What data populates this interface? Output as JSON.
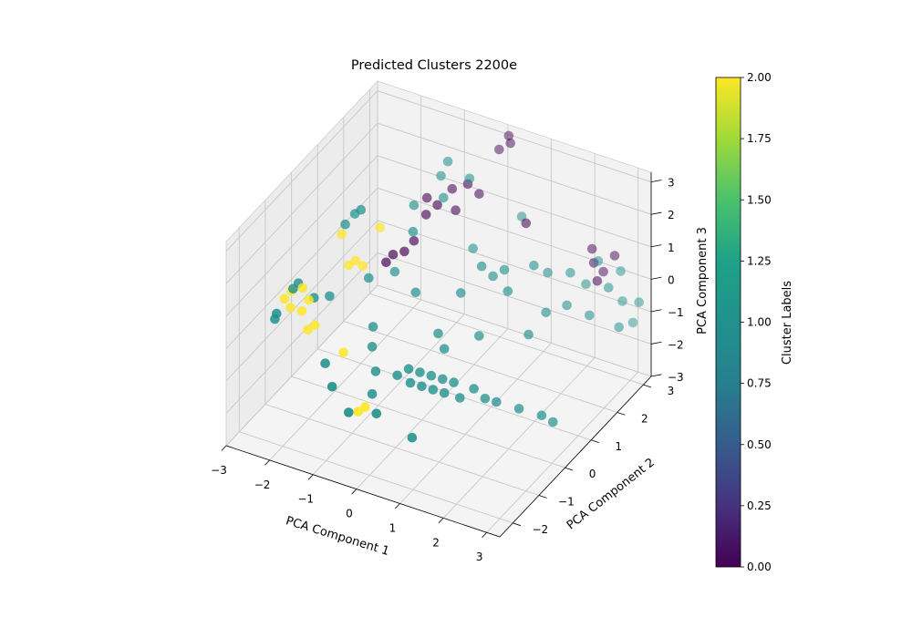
{
  "chart_data": {
    "type": "scatter",
    "title": "Predicted Clusters 2200e",
    "xlabel": "PCA Component 1",
    "ylabel": "PCA Component 2",
    "zlabel": "PCA Component 3",
    "x_ticks": [
      "−3",
      "−2",
      "−1",
      "0",
      "1",
      "2",
      "3"
    ],
    "y_ticks": [
      "−2",
      "−1",
      "0",
      "1",
      "2",
      "3"
    ],
    "z_ticks": [
      "−3",
      "−2",
      "−1",
      "0",
      "1",
      "2",
      "3"
    ],
    "xlim": [
      -3,
      3.3
    ],
    "ylim": [
      -2.5,
      3.3
    ],
    "zlim": [
      -3,
      3.3
    ],
    "grid": true,
    "colorbar": {
      "label": "Cluster Labels",
      "range": [
        0,
        2
      ],
      "colormap": "viridis",
      "ticks": [
        "0.00",
        "0.25",
        "0.50",
        "0.75",
        "1.00",
        "1.25",
        "1.50",
        "1.75",
        "2.00"
      ]
    },
    "colors": {
      "0": "#440154",
      "1": "#21918c",
      "2": "#fde725"
    },
    "points": [
      {
        "x": -2.8,
        "y": -0.6,
        "z": 0.0,
        "label": 2
      },
      {
        "x": -2.7,
        "y": -0.5,
        "z": 0.2,
        "label": 2
      },
      {
        "x": -2.6,
        "y": -0.7,
        "z": -0.1,
        "label": 2
      },
      {
        "x": -2.5,
        "y": -0.4,
        "z": 0.3,
        "label": 2
      },
      {
        "x": -2.4,
        "y": -0.6,
        "z": -0.2,
        "label": 2
      },
      {
        "x": -2.3,
        "y": -0.5,
        "z": 0.1,
        "label": 2
      },
      {
        "x": -2.2,
        "y": -0.7,
        "z": -0.6,
        "label": 2
      },
      {
        "x": -2.1,
        "y": -0.6,
        "z": -0.5,
        "label": 2
      },
      {
        "x": -1.8,
        "y": 0.2,
        "z": 0.8,
        "label": 2
      },
      {
        "x": -1.7,
        "y": 0.3,
        "z": 0.9,
        "label": 2
      },
      {
        "x": -1.6,
        "y": 0.4,
        "z": 0.7,
        "label": 2
      },
      {
        "x": -1.9,
        "y": 0.1,
        "z": 1.8,
        "label": 2
      },
      {
        "x": -1.2,
        "y": -1.0,
        "z": -0.6,
        "label": 2
      },
      {
        "x": -0.5,
        "y": -1.6,
        "z": -1.6,
        "label": 2
      },
      {
        "x": -0.4,
        "y": -1.5,
        "z": -1.5,
        "label": 2
      },
      {
        "x": -1.5,
        "y": 0.9,
        "z": 1.5,
        "label": 2
      },
      {
        "x": -2.9,
        "y": -0.8,
        "z": -0.5,
        "label": 1
      },
      {
        "x": -2.6,
        "y": -0.4,
        "z": 0.4,
        "label": 1
      },
      {
        "x": -2.3,
        "y": -0.3,
        "z": 0.0,
        "label": 1
      },
      {
        "x": -2.0,
        "y": -0.2,
        "z": 0.1,
        "label": 1
      },
      {
        "x": -2.8,
        "y": -0.9,
        "z": -0.2,
        "label": 1
      },
      {
        "x": -2.0,
        "y": 0.4,
        "z": 1.8,
        "label": 1
      },
      {
        "x": -1.9,
        "y": 0.6,
        "z": 2.0,
        "label": 1
      },
      {
        "x": -1.7,
        "y": 0.5,
        "z": 2.3,
        "label": 1
      },
      {
        "x": -1.4,
        "y": 0.3,
        "z": 0.5,
        "label": 1
      },
      {
        "x": -1.0,
        "y": -0.2,
        "z": -0.4,
        "label": 1
      },
      {
        "x": -0.9,
        "y": -0.4,
        "z": -0.8,
        "label": 1
      },
      {
        "x": -0.7,
        "y": -0.6,
        "z": -1.3,
        "label": 1
      },
      {
        "x": -0.6,
        "y": -0.9,
        "z": -1.7,
        "label": 1
      },
      {
        "x": -0.2,
        "y": -0.6,
        "z": -1.2,
        "label": 1
      },
      {
        "x": 0.0,
        "y": -0.5,
        "z": -1.0,
        "label": 1
      },
      {
        "x": 0.1,
        "y": -0.6,
        "z": -1.3,
        "label": 1
      },
      {
        "x": 0.2,
        "y": -0.4,
        "z": -1.1,
        "label": 1
      },
      {
        "x": 0.3,
        "y": -0.5,
        "z": -1.4,
        "label": 1
      },
      {
        "x": 0.4,
        "y": -0.3,
        "z": -1.2,
        "label": 1
      },
      {
        "x": 0.5,
        "y": -0.4,
        "z": -1.5,
        "label": 1
      },
      {
        "x": 0.6,
        "y": -0.2,
        "z": -1.3,
        "label": 1
      },
      {
        "x": 0.7,
        "y": -0.3,
        "z": -1.6,
        "label": 1
      },
      {
        "x": 0.8,
        "y": -0.1,
        "z": -1.4,
        "label": 1
      },
      {
        "x": 1.0,
        "y": -0.2,
        "z": -1.7,
        "label": 1
      },
      {
        "x": 1.2,
        "y": 0.0,
        "z": -1.5,
        "label": 1
      },
      {
        "x": 1.4,
        "y": 0.1,
        "z": -1.8,
        "label": 1
      },
      {
        "x": 1.6,
        "y": 0.2,
        "z": -1.9,
        "label": 1
      },
      {
        "x": 2.0,
        "y": 0.4,
        "z": -2.1,
        "label": 1
      },
      {
        "x": 2.4,
        "y": 0.6,
        "z": -2.3,
        "label": 1
      },
      {
        "x": 2.6,
        "y": 0.7,
        "z": -2.5,
        "label": 1
      },
      {
        "x": -1.5,
        "y": -1.2,
        "z": -0.9,
        "label": 1
      },
      {
        "x": -1.1,
        "y": -1.6,
        "z": -1.1,
        "label": 1
      },
      {
        "x": -0.6,
        "y": -1.8,
        "z": -1.5,
        "label": 1
      },
      {
        "x": -0.2,
        "y": -1.4,
        "z": -1.7,
        "label": 1
      },
      {
        "x": 0.5,
        "y": -1.2,
        "z": -2.3,
        "label": 1
      },
      {
        "x": -0.8,
        "y": 1.0,
        "z": 1.6,
        "label": 1
      },
      {
        "x": -0.9,
        "y": 1.2,
        "z": 2.2,
        "label": 1
      },
      {
        "x": -0.4,
        "y": 1.5,
        "z": 2.4,
        "label": 1
      },
      {
        "x": -1.1,
        "y": 0.8,
        "z": 0.4,
        "label": 1
      },
      {
        "x": -0.5,
        "y": 0.6,
        "z": 0.2,
        "label": 1
      },
      {
        "x": 0.3,
        "y": 1.0,
        "z": 0.2,
        "label": 1
      },
      {
        "x": 0.6,
        "y": 1.3,
        "z": 0.9,
        "label": 1
      },
      {
        "x": 0.8,
        "y": 1.4,
        "z": 0.6,
        "label": 1
      },
      {
        "x": 1.0,
        "y": 1.5,
        "z": 0.8,
        "label": 1
      },
      {
        "x": 1.2,
        "y": 1.3,
        "z": 0.4,
        "label": 1
      },
      {
        "x": 1.5,
        "y": 1.8,
        "z": 0.9,
        "label": 1
      },
      {
        "x": 1.7,
        "y": 2.0,
        "z": 0.6,
        "label": 1
      },
      {
        "x": 1.9,
        "y": 1.6,
        "z": -0.2,
        "label": 1
      },
      {
        "x": 2.2,
        "y": 1.9,
        "z": -0.1,
        "label": 1
      },
      {
        "x": 2.4,
        "y": 2.3,
        "z": 0.3,
        "label": 1
      },
      {
        "x": 2.6,
        "y": 2.1,
        "z": -0.4,
        "label": 1
      },
      {
        "x": 2.8,
        "y": 2.5,
        "z": 0.2,
        "label": 1
      },
      {
        "x": 3.0,
        "y": 2.7,
        "z": -0.3,
        "label": 1
      },
      {
        "x": 3.1,
        "y": 2.4,
        "z": -0.8,
        "label": 1
      },
      {
        "x": 2.9,
        "y": 2.8,
        "z": 0.5,
        "label": 1
      },
      {
        "x": 3.2,
        "y": 3.0,
        "z": -0.5,
        "label": 1
      },
      {
        "x": 2.5,
        "y": 2.6,
        "z": 0.8,
        "label": 1
      },
      {
        "x": 3.0,
        "y": 3.1,
        "z": -1.3,
        "label": 1
      },
      {
        "x": 1.8,
        "y": 1.1,
        "z": -0.5,
        "label": 1
      },
      {
        "x": 0.9,
        "y": 0.7,
        "z": -0.6,
        "label": 1
      },
      {
        "x": 0.2,
        "y": 0.3,
        "z": -0.5,
        "label": 1
      },
      {
        "x": 0.1,
        "y": 1.8,
        "z": 0.8,
        "label": 1
      },
      {
        "x": 0.4,
        "y": 0.2,
        "z": -0.8,
        "label": 1
      },
      {
        "x": -0.6,
        "y": 2.0,
        "z": 3.0,
        "label": 1
      },
      {
        "x": -0.1,
        "y": 2.0,
        "z": 2.7,
        "label": 1
      },
      {
        "x": 0.8,
        "y": 2.5,
        "z": 1.5,
        "label": 1
      },
      {
        "x": 2.1,
        "y": 2.2,
        "z": 0.6,
        "label": 1
      },
      {
        "x": -2.6,
        "y": -0.6,
        "z": 0.4,
        "label": 1
      },
      {
        "x": -0.7,
        "y": 1.9,
        "z": 2.6,
        "label": 1
      },
      {
        "x": -0.6,
        "y": 1.6,
        "z": 2.0,
        "label": 0
      },
      {
        "x": -0.8,
        "y": 1.5,
        "z": 1.7,
        "label": 0
      },
      {
        "x": -0.9,
        "y": 1.7,
        "z": 2.0,
        "label": 0
      },
      {
        "x": -0.5,
        "y": 2.0,
        "z": 2.2,
        "label": 0
      },
      {
        "x": -0.2,
        "y": 2.1,
        "z": 2.4,
        "label": 0
      },
      {
        "x": 0.0,
        "y": 2.2,
        "z": 2.1,
        "label": 0
      },
      {
        "x": -0.3,
        "y": 1.8,
        "z": 1.8,
        "label": 0
      },
      {
        "x": -1.0,
        "y": 1.0,
        "z": 0.9,
        "label": 0
      },
      {
        "x": -1.2,
        "y": 0.9,
        "z": 0.8,
        "label": 0
      },
      {
        "x": -1.3,
        "y": 0.8,
        "z": 0.6,
        "label": 0
      },
      {
        "x": -0.9,
        "y": 1.2,
        "z": 1.1,
        "label": 0
      },
      {
        "x": 0.3,
        "y": 2.9,
        "z": 3.2,
        "label": 0
      },
      {
        "x": 0.2,
        "y": 3.0,
        "z": 3.3,
        "label": 0
      },
      {
        "x": 0.1,
        "y": 2.8,
        "z": 3.0,
        "label": 0
      },
      {
        "x": 1.2,
        "y": 2.0,
        "z": 1.9,
        "label": 0
      },
      {
        "x": 2.4,
        "y": 2.6,
        "z": 0.7,
        "label": 0
      },
      {
        "x": 2.6,
        "y": 2.4,
        "z": 0.4,
        "label": 0
      },
      {
        "x": 2.5,
        "y": 2.8,
        "z": 0.3,
        "label": 0
      },
      {
        "x": 2.3,
        "y": 2.7,
        "z": 1.0,
        "label": 0
      },
      {
        "x": 2.7,
        "y": 2.9,
        "z": 0.8,
        "label": 0
      }
    ]
  }
}
